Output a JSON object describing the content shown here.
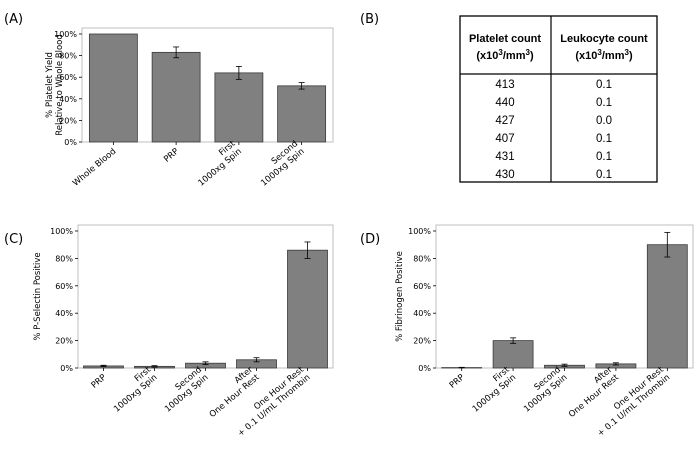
{
  "panels": {
    "a": {
      "letter": "(A)"
    },
    "b": {
      "letter": "(B)"
    },
    "c": {
      "letter": "(C)"
    },
    "d": {
      "letter": "(D)"
    }
  },
  "table": {
    "headers": [
      {
        "line1": "Platelet count",
        "line2_pre": "(x10",
        "sup1": "3",
        "line2_mid": "/mm",
        "sup2": "3",
        "line2_post": ")"
      },
      {
        "line1": "Leukocyte count",
        "line2_pre": "(x10",
        "sup1": "3",
        "line2_mid": "/mm",
        "sup2": "3",
        "line2_post": ")"
      }
    ],
    "rows": [
      [
        "413",
        "0.1"
      ],
      [
        "440",
        "0.1"
      ],
      [
        "427",
        "0.0"
      ],
      [
        "407",
        "0.1"
      ],
      [
        "431",
        "0.1"
      ],
      [
        "430",
        "0.1"
      ]
    ]
  },
  "chart_data": [
    {
      "id": "A",
      "type": "bar",
      "ylabel": [
        "% Platelet Yield",
        "Relative to Whole Blood"
      ],
      "ylim": [
        0,
        100
      ],
      "yticks": [
        0,
        20,
        40,
        60,
        80,
        100
      ],
      "ytick_labels": [
        "0%",
        "20%",
        "40%",
        "60%",
        "80%",
        "100%"
      ],
      "categories": [
        [
          "Whole Blood"
        ],
        [
          "PRP"
        ],
        [
          "First",
          "1000xg Spin"
        ],
        [
          "Second",
          "1000xg Spin"
        ]
      ],
      "values": [
        100,
        83,
        64,
        52
      ],
      "errors": [
        0,
        5,
        6,
        3
      ],
      "bar_color": "#808080"
    },
    {
      "id": "C",
      "type": "bar",
      "ylabel": [
        "% P-Selectin Positive"
      ],
      "ylim": [
        0,
        100
      ],
      "yticks": [
        0,
        20,
        40,
        60,
        80,
        100
      ],
      "ytick_labels": [
        "0%",
        "20%",
        "40%",
        "60%",
        "80%",
        "100%"
      ],
      "categories": [
        [
          "PRP"
        ],
        [
          "First",
          "1000xg Spin"
        ],
        [
          "Second",
          "1000xg Spin"
        ],
        [
          "After",
          "One Hour Rest"
        ],
        [
          "One Hour Rest",
          "+ 0.1 U/mL Thrombin"
        ]
      ],
      "values": [
        1.5,
        1.2,
        3.5,
        6,
        86
      ],
      "errors": [
        0.5,
        0.5,
        1,
        1.5,
        6
      ],
      "bar_color": "#808080"
    },
    {
      "id": "D",
      "type": "bar",
      "ylabel": [
        "% Fibrinogen Positive"
      ],
      "ylim": [
        0,
        100
      ],
      "yticks": [
        0,
        20,
        40,
        60,
        80,
        100
      ],
      "ytick_labels": [
        "0%",
        "20%",
        "40%",
        "60%",
        "80%",
        "100%"
      ],
      "categories": [
        [
          "PRP"
        ],
        [
          "First",
          "1000xg Spin"
        ],
        [
          "Second",
          "1000xg Spin"
        ],
        [
          "After",
          "One Hour Rest"
        ],
        [
          "One Hour Rest",
          "+ 0.1 U/mL Thrombin"
        ]
      ],
      "values": [
        0.3,
        20,
        2,
        3,
        90
      ],
      "errors": [
        0.2,
        2,
        0.8,
        0.8,
        9
      ],
      "bar_color": "#808080"
    }
  ]
}
